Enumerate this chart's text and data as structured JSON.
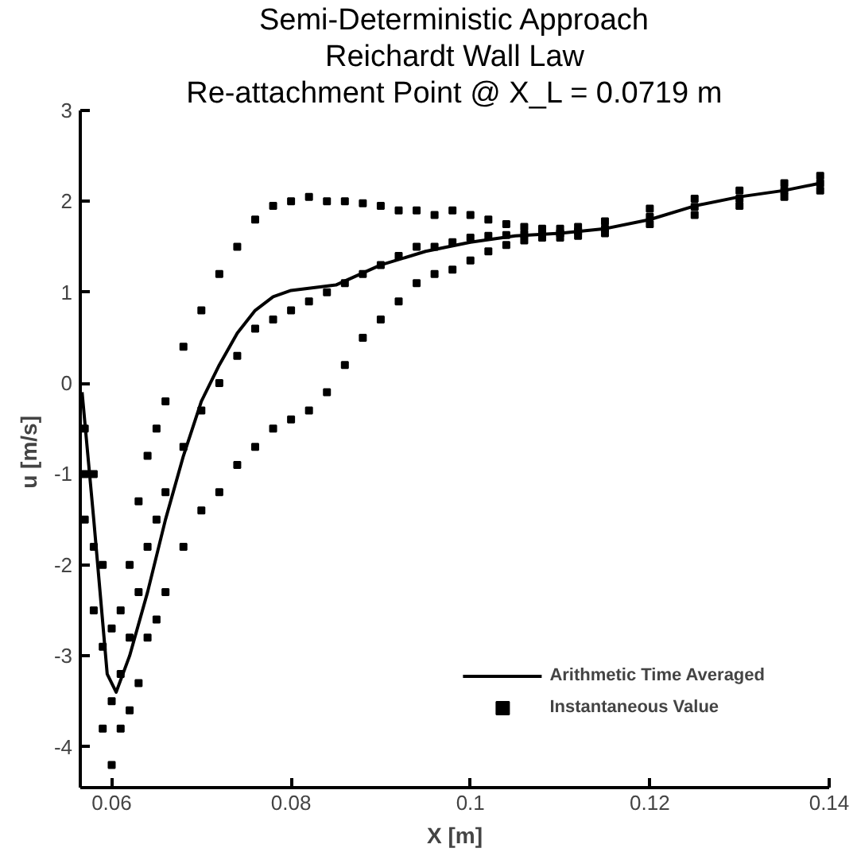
{
  "chart_data": {
    "type": "line",
    "title": "Semi-Deterministic Approach",
    "subtitle": "Reichardt Wall Law",
    "annotations": [
      "Re-attachment Point @ X_L = 0.0719 m"
    ],
    "xlabel": "X [m]",
    "ylabel": "u  [m/s]",
    "xlim": [
      0.0565,
      0.14
    ],
    "ylim": [
      -4.45,
      3
    ],
    "xticks": [
      0.06,
      0.08,
      0.1,
      0.12,
      0.14
    ],
    "yticks": [
      -4,
      -3,
      -2,
      -1,
      0,
      1,
      2,
      3
    ],
    "grid": false,
    "legend": "bottom right",
    "series": [
      {
        "name": "Arithmetic Time Averaged",
        "color": "#000000",
        "line_style": "solid",
        "x": [
          0.0567,
          0.058,
          0.0595,
          0.0605,
          0.062,
          0.064,
          0.066,
          0.068,
          0.07,
          0.072,
          0.074,
          0.076,
          0.078,
          0.08,
          0.085,
          0.09,
          0.095,
          0.1,
          0.105,
          0.11,
          0.115,
          0.12,
          0.125,
          0.13,
          0.135,
          0.139
        ],
        "values": [
          -0.1,
          -1.5,
          -3.2,
          -3.4,
          -3.0,
          -2.3,
          -1.5,
          -0.8,
          -0.2,
          0.2,
          0.55,
          0.8,
          0.95,
          1.02,
          1.08,
          1.3,
          1.45,
          1.55,
          1.62,
          1.65,
          1.7,
          1.8,
          1.95,
          2.05,
          2.12,
          2.2
        ]
      },
      {
        "name": "Instantaneous Value",
        "type": "scatter",
        "color": "#000000",
        "marker": "square",
        "x": [
          0.057,
          0.057,
          0.057,
          0.058,
          0.058,
          0.058,
          0.059,
          0.059,
          0.059,
          0.06,
          0.06,
          0.06,
          0.061,
          0.061,
          0.061,
          0.062,
          0.062,
          0.062,
          0.063,
          0.063,
          0.063,
          0.064,
          0.064,
          0.064,
          0.065,
          0.065,
          0.065,
          0.066,
          0.066,
          0.066,
          0.068,
          0.068,
          0.068,
          0.07,
          0.07,
          0.07,
          0.072,
          0.072,
          0.072,
          0.074,
          0.074,
          0.074,
          0.076,
          0.076,
          0.076,
          0.078,
          0.078,
          0.078,
          0.08,
          0.08,
          0.08,
          0.082,
          0.082,
          0.082,
          0.084,
          0.084,
          0.084,
          0.086,
          0.086,
          0.086,
          0.088,
          0.088,
          0.088,
          0.09,
          0.09,
          0.09,
          0.092,
          0.092,
          0.092,
          0.094,
          0.094,
          0.094,
          0.096,
          0.096,
          0.096,
          0.098,
          0.098,
          0.098,
          0.1,
          0.1,
          0.1,
          0.102,
          0.102,
          0.102,
          0.104,
          0.104,
          0.104,
          0.106,
          0.106,
          0.106,
          0.108,
          0.108,
          0.108,
          0.11,
          0.11,
          0.11,
          0.112,
          0.112,
          0.112,
          0.115,
          0.115,
          0.115,
          0.12,
          0.12,
          0.12,
          0.125,
          0.125,
          0.125,
          0.13,
          0.13,
          0.13,
          0.135,
          0.135,
          0.135,
          0.139,
          0.139,
          0.139
        ],
        "values": [
          -0.5,
          -1.0,
          -1.5,
          -1.0,
          -1.8,
          -2.5,
          -2.0,
          -2.9,
          -3.8,
          -2.7,
          -3.5,
          -4.2,
          -2.5,
          -3.2,
          -3.8,
          -2.0,
          -2.8,
          -3.6,
          -1.3,
          -2.3,
          -3.3,
          -0.8,
          -1.8,
          -2.8,
          -0.5,
          -1.5,
          -2.6,
          -0.2,
          -1.2,
          -2.3,
          0.4,
          -0.7,
          -1.8,
          0.8,
          -0.3,
          -1.4,
          1.2,
          0.0,
          -1.2,
          1.5,
          0.3,
          -0.9,
          1.8,
          0.6,
          -0.7,
          1.95,
          0.7,
          -0.5,
          2.0,
          0.8,
          -0.4,
          2.05,
          0.9,
          -0.3,
          2.0,
          1.0,
          -0.1,
          2.0,
          1.1,
          0.2,
          1.98,
          1.2,
          0.5,
          1.95,
          1.3,
          0.7,
          1.9,
          1.4,
          0.9,
          1.9,
          1.5,
          1.1,
          1.85,
          1.5,
          1.2,
          1.9,
          1.55,
          1.25,
          1.85,
          1.6,
          1.35,
          1.8,
          1.62,
          1.45,
          1.75,
          1.63,
          1.52,
          1.72,
          1.64,
          1.57,
          1.7,
          1.65,
          1.6,
          1.7,
          1.65,
          1.6,
          1.72,
          1.67,
          1.62,
          1.78,
          1.7,
          1.65,
          1.92,
          1.83,
          1.75,
          2.03,
          1.94,
          1.85,
          2.12,
          2.03,
          1.95,
          2.2,
          2.12,
          2.05,
          2.28,
          2.2,
          2.12
        ]
      }
    ]
  }
}
